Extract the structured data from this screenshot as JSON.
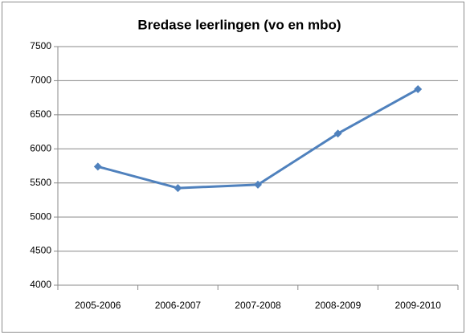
{
  "chart_data": {
    "type": "line",
    "title": "Bredase leerlingen (vo en mbo)",
    "categories": [
      "2005-2006",
      "2006-2007",
      "2007-2008",
      "2008-2009",
      "2009-2010"
    ],
    "series": [
      {
        "name": "Bredase leerlingen",
        "color": "#4f81bd",
        "values": [
          5740,
          5425,
          5475,
          6225,
          6875
        ]
      }
    ],
    "ylim": [
      4000,
      7500
    ],
    "yticks": [
      4000,
      4500,
      5000,
      5500,
      6000,
      6500,
      7000,
      7500
    ],
    "grid": true
  }
}
